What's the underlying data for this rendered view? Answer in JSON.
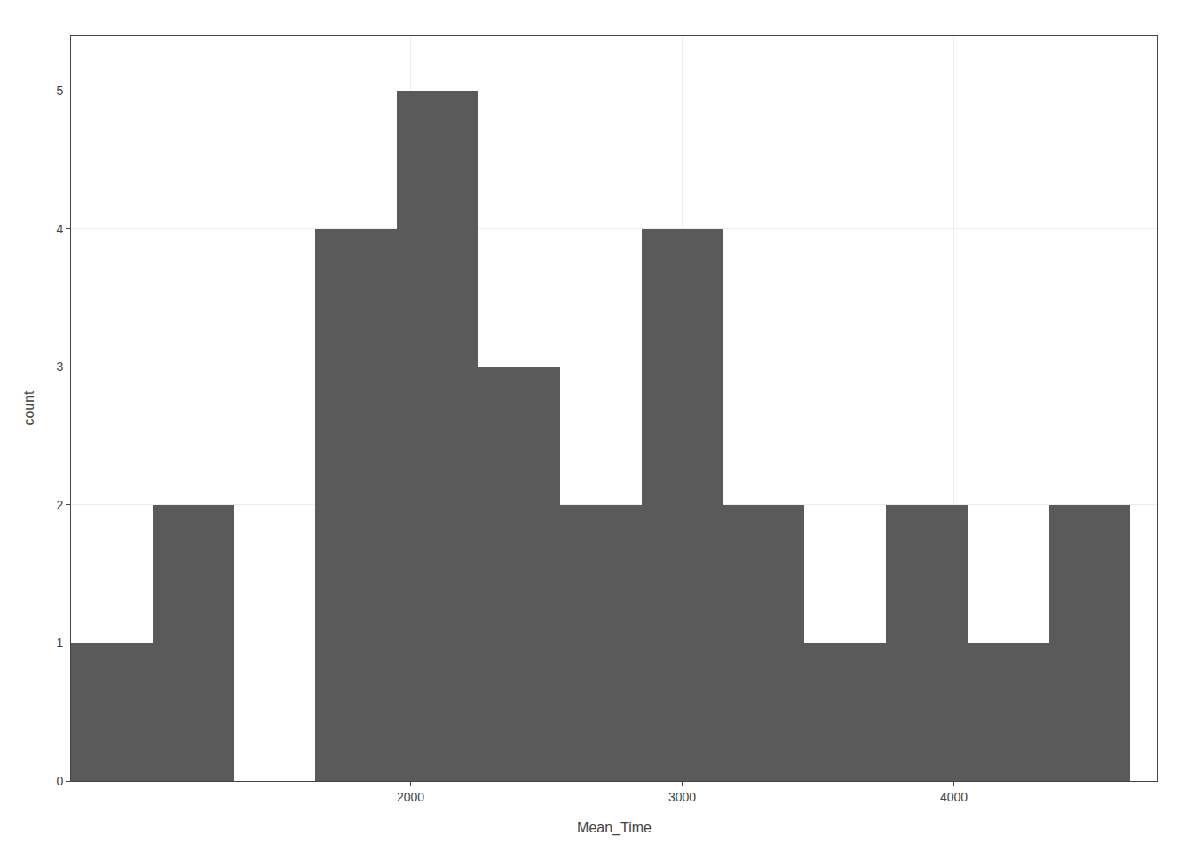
{
  "chart_data": {
    "type": "histogram",
    "xlabel": "Mean_Time",
    "ylabel": "count",
    "bins": [
      750,
      1050,
      1350,
      1650,
      1950,
      2250,
      2550,
      2850,
      3150,
      3450,
      3750,
      4050,
      4350,
      4650
    ],
    "values": [
      1,
      2,
      0,
      4,
      5,
      3,
      2,
      4,
      2,
      1,
      2,
      1,
      2
    ],
    "color": "#5A5A5A",
    "xlim": [
      750,
      4750
    ],
    "ylim": [
      0,
      5.4
    ],
    "xticks": [
      2000,
      3000,
      4000
    ],
    "yticks": [
      0,
      1,
      2,
      3,
      4,
      5
    ],
    "grid": true
  }
}
